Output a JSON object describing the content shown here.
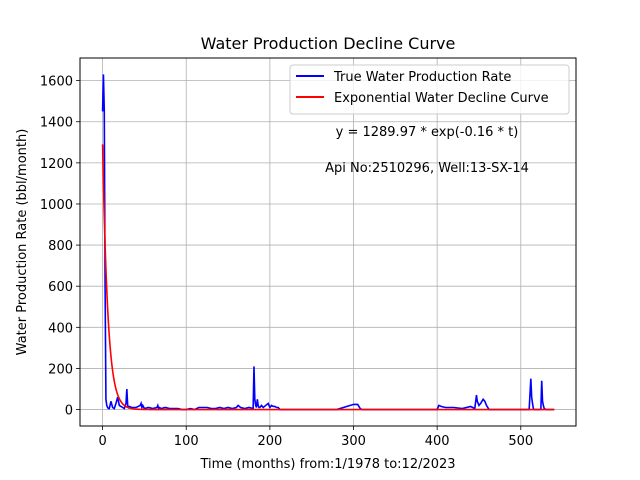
{
  "chart_data": {
    "type": "line",
    "title": "Water Production Decline Curve",
    "xlabel": "Time (months) from:1/1978 to:12/2023",
    "ylabel": "Water Production Rate (bbl/month)",
    "xlim": [
      -27,
      566
    ],
    "ylim": [
      -80,
      1710
    ],
    "x_ticks": [
      0,
      100,
      200,
      300,
      400,
      500
    ],
    "y_ticks": [
      0,
      200,
      400,
      600,
      800,
      1000,
      1200,
      1400,
      1600
    ],
    "grid": true,
    "legend_position": "top-right",
    "annotations": [
      "y = 1289.97 * exp(-0.16 * t)",
      "Api No:2510296, Well:13-SX-14"
    ],
    "series": [
      {
        "name": "True Water Production Rate",
        "color": "#0000ff",
        "x": [
          0,
          1,
          2,
          3,
          4,
          5,
          6,
          7,
          8,
          10,
          12,
          14,
          16,
          18,
          20,
          22,
          24,
          26,
          28,
          29,
          30,
          31,
          32,
          35,
          40,
          45,
          46,
          47,
          48,
          50,
          55,
          60,
          65,
          66,
          67,
          68,
          70,
          75,
          80,
          85,
          90,
          95,
          100,
          105,
          110,
          115,
          120,
          125,
          130,
          135,
          140,
          145,
          150,
          155,
          160,
          162,
          165,
          170,
          175,
          180,
          181,
          182,
          183,
          184,
          185,
          186,
          187,
          188,
          190,
          192,
          195,
          198,
          200,
          202,
          204,
          206,
          208,
          210,
          212,
          215,
          220,
          240,
          260,
          280,
          300,
          302,
          305,
          308,
          310,
          320,
          340,
          360,
          380,
          400,
          402,
          405,
          410,
          420,
          430,
          440,
          445,
          447,
          448,
          450,
          452,
          455,
          457,
          459,
          462,
          470,
          490,
          510,
          512,
          513,
          514,
          515,
          516,
          518,
          520,
          524,
          525,
          526,
          527,
          528,
          530,
          535,
          540
        ],
        "y": [
          1450,
          1630,
          1460,
          600,
          50,
          20,
          10,
          5,
          5,
          40,
          10,
          5,
          30,
          60,
          20,
          15,
          10,
          5,
          30,
          100,
          20,
          10,
          15,
          10,
          10,
          20,
          30,
          10,
          20,
          5,
          10,
          5,
          10,
          20,
          5,
          10,
          5,
          10,
          5,
          5,
          5,
          0,
          0,
          5,
          0,
          10,
          10,
          10,
          5,
          5,
          10,
          5,
          10,
          5,
          10,
          20,
          10,
          5,
          10,
          5,
          210,
          50,
          20,
          10,
          50,
          20,
          10,
          10,
          20,
          10,
          20,
          30,
          10,
          20,
          15,
          15,
          10,
          10,
          0,
          0,
          0,
          0,
          0,
          0,
          25,
          25,
          25,
          5,
          0,
          0,
          0,
          0,
          0,
          0,
          20,
          15,
          10,
          10,
          5,
          15,
          5,
          70,
          40,
          20,
          30,
          50,
          40,
          20,
          0,
          0,
          0,
          0,
          150,
          60,
          30,
          5,
          0,
          0,
          0,
          0,
          140,
          40,
          20,
          5,
          0,
          0,
          0
        ]
      },
      {
        "name": "Exponential Water Decline Curve",
        "color": "#ff0000",
        "a": 1289.97,
        "b": -0.16,
        "x_range": [
          0,
          540
        ]
      }
    ]
  }
}
